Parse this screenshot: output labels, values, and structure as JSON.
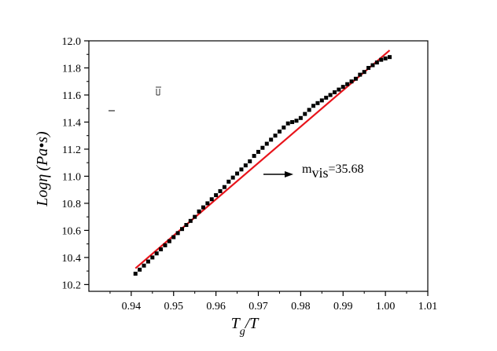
{
  "chart_data": {
    "type": "scatter",
    "xlabel": "T_g/T",
    "xlabel_main": "T",
    "xlabel_sub": "g",
    "xlabel_rest": "/T",
    "ylabel": "Logη (Pa•s)",
    "ylabel_main": "Logη",
    "ylabel_paren": "(Pa•s)",
    "xlim": [
      0.93,
      1.01
    ],
    "ylim": [
      10.15,
      12.0
    ],
    "xticks": [
      "0.94",
      "0.95",
      "0.96",
      "0.97",
      "0.98",
      "0.99",
      "1.00",
      "1.01"
    ],
    "yticks": [
      "10.2",
      "10.4",
      "10.6",
      "10.8",
      "11.0",
      "11.2",
      "11.4",
      "11.6",
      "11.8",
      "12.0"
    ],
    "grid": false,
    "series": [
      {
        "kind": "points",
        "color": "#000000",
        "x": [
          0.941,
          0.942,
          0.943,
          0.944,
          0.945,
          0.946,
          0.947,
          0.948,
          0.949,
          0.95,
          0.951,
          0.952,
          0.953,
          0.954,
          0.955,
          0.956,
          0.957,
          0.958,
          0.959,
          0.96,
          0.961,
          0.962,
          0.963,
          0.964,
          0.965,
          0.966,
          0.967,
          0.968,
          0.969,
          0.97,
          0.971,
          0.972,
          0.973,
          0.974,
          0.975,
          0.976,
          0.977,
          0.978,
          0.979,
          0.98,
          0.981,
          0.982,
          0.983,
          0.984,
          0.985,
          0.986,
          0.987,
          0.988,
          0.989,
          0.99,
          0.991,
          0.992,
          0.993,
          0.994,
          0.995,
          0.996,
          0.997,
          0.998,
          0.999,
          1.0,
          1.001
        ],
        "y": [
          10.28,
          10.31,
          10.34,
          10.37,
          10.4,
          10.43,
          10.46,
          10.49,
          10.52,
          10.55,
          10.58,
          10.61,
          10.64,
          10.67,
          10.7,
          10.74,
          10.77,
          10.8,
          10.83,
          10.86,
          10.89,
          10.92,
          10.96,
          10.99,
          11.02,
          11.05,
          11.08,
          11.11,
          11.15,
          11.18,
          11.21,
          11.24,
          11.27,
          11.3,
          11.33,
          11.36,
          11.39,
          11.4,
          11.41,
          11.43,
          11.46,
          11.49,
          11.52,
          11.54,
          11.56,
          11.58,
          11.6,
          11.62,
          11.64,
          11.66,
          11.68,
          11.7,
          11.72,
          11.75,
          11.77,
          11.8,
          11.82,
          11.84,
          11.86,
          11.87,
          11.88
        ]
      },
      {
        "kind": "fit-line",
        "color": "#e8141b",
        "x": [
          0.941,
          1.001
        ],
        "y": [
          10.32,
          11.93
        ]
      }
    ],
    "annotations": [
      {
        "name_main": "m",
        "name_sub": "vis",
        "value_text": "=35.68"
      }
    ]
  }
}
